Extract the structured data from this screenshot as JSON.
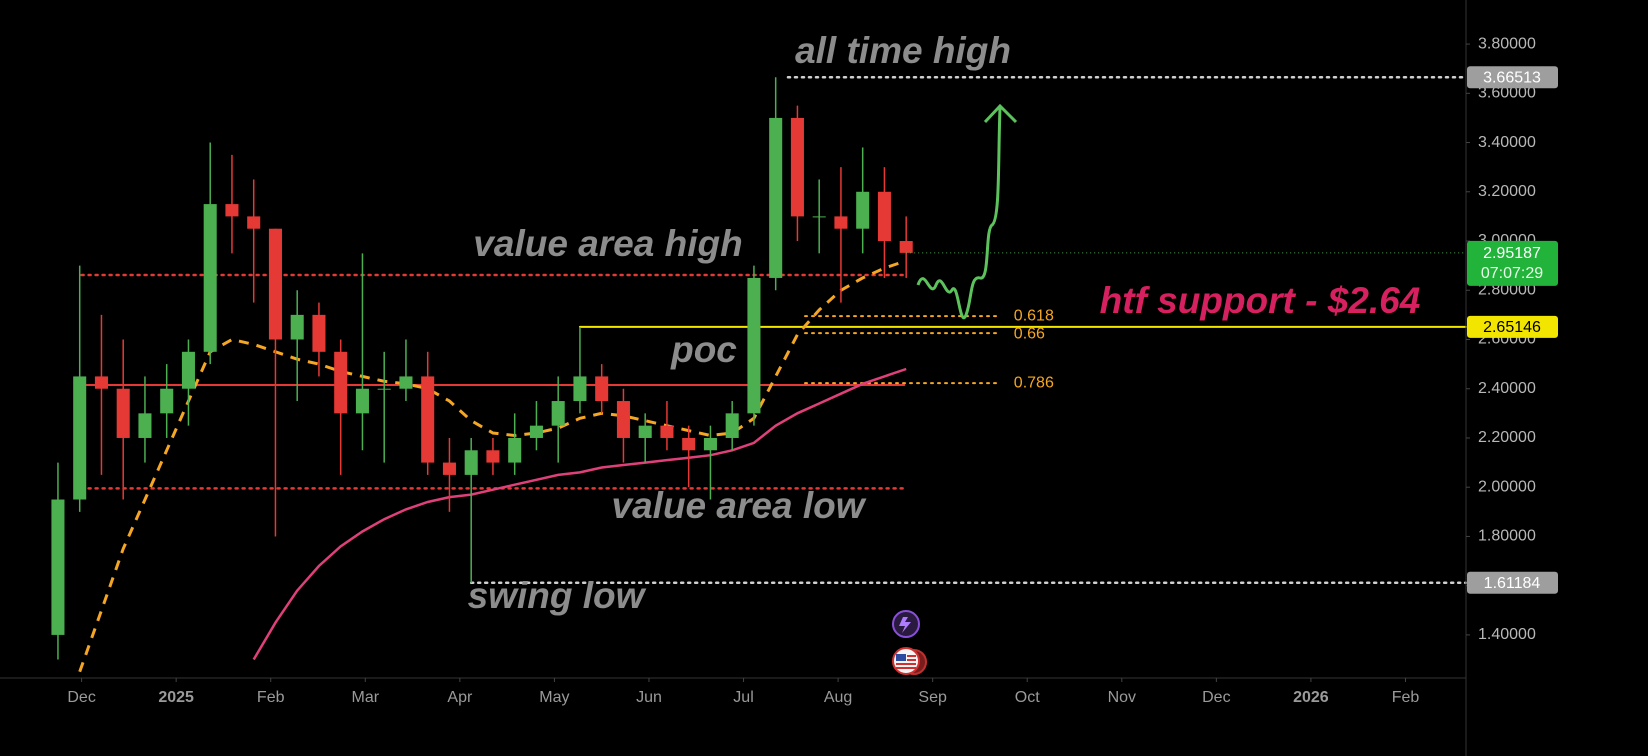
{
  "chart_data": {
    "type": "candlestick",
    "x": [
      -0.25,
      -0.02,
      0.21,
      0.44,
      0.67,
      0.9,
      1.13,
      1.36,
      1.59,
      1.82,
      2.05,
      2.28,
      2.51,
      2.74,
      2.97,
      3.2,
      3.43,
      3.66,
      3.89,
      4.12,
      4.35,
      4.58,
      4.81,
      5.04,
      5.27,
      5.5,
      5.73,
      5.96,
      6.19,
      6.42,
      6.65,
      6.88,
      7.11,
      7.34,
      7.57,
      7.8,
      8.03,
      8.26,
      8.49,
      8.72
    ],
    "open": [
      1.4,
      1.95,
      2.45,
      2.4,
      2.2,
      2.3,
      2.4,
      2.55,
      3.15,
      3.1,
      3.05,
      2.6,
      2.7,
      2.55,
      2.3,
      2.4,
      2.4,
      2.45,
      2.1,
      2.05,
      2.15,
      2.1,
      2.2,
      2.25,
      2.35,
      2.45,
      2.35,
      2.2,
      2.25,
      2.2,
      2.15,
      2.2,
      2.3,
      2.85,
      3.5,
      3.1,
      3.1,
      3.05,
      3.2,
      3.0
    ],
    "high": [
      2.1,
      2.9,
      2.7,
      2.6,
      2.45,
      2.5,
      2.6,
      3.4,
      3.35,
      3.25,
      3.05,
      2.8,
      2.75,
      2.6,
      2.95,
      2.55,
      2.6,
      2.55,
      2.2,
      2.2,
      2.2,
      2.3,
      2.35,
      2.45,
      2.65,
      2.5,
      2.4,
      2.3,
      2.35,
      2.25,
      2.25,
      2.35,
      2.9,
      3.66513,
      3.55,
      3.25,
      3.3,
      3.38,
      3.3,
      3.1
    ],
    "low": [
      1.3,
      1.9,
      2.05,
      1.95,
      2.1,
      2.2,
      2.25,
      2.5,
      2.95,
      2.75,
      1.8,
      2.35,
      2.45,
      2.05,
      2.15,
      2.1,
      2.35,
      2.05,
      1.9,
      1.61184,
      2.05,
      2.05,
      2.15,
      2.1,
      2.3,
      2.3,
      2.1,
      2.1,
      2.15,
      2.0,
      1.95,
      2.15,
      2.25,
      2.8,
      3.0,
      2.95,
      2.75,
      2.95,
      2.85,
      2.85
    ],
    "close": [
      1.95,
      2.45,
      2.4,
      2.2,
      2.3,
      2.4,
      2.55,
      3.15,
      3.1,
      3.05,
      2.6,
      2.7,
      2.55,
      2.3,
      2.4,
      2.4,
      2.45,
      2.1,
      2.05,
      2.15,
      2.1,
      2.2,
      2.25,
      2.35,
      2.45,
      2.35,
      2.2,
      2.25,
      2.2,
      2.15,
      2.2,
      2.3,
      2.85,
      3.5,
      3.1,
      3.1,
      3.05,
      3.2,
      3.0,
      2.95187
    ],
    "up_color": "#4caf50",
    "down_color": "#e53935",
    "countdown": "07:07:29",
    "moving_averages": [
      {
        "color": "#e0407a",
        "dash": false,
        "values": [
          null,
          null,
          null,
          null,
          null,
          null,
          null,
          null,
          null,
          1.3,
          1.45,
          1.58,
          1.68,
          1.76,
          1.82,
          1.87,
          1.91,
          1.94,
          1.96,
          1.97,
          1.99,
          2.01,
          2.03,
          2.05,
          2.06,
          2.08,
          2.09,
          2.1,
          2.11,
          2.12,
          2.13,
          2.15,
          2.18,
          2.25,
          2.3,
          2.34,
          2.38,
          2.42,
          2.45,
          2.48
        ]
      },
      {
        "color": "#f5a623",
        "dash": true,
        "values": [
          null,
          1.25,
          1.5,
          1.75,
          1.95,
          2.15,
          2.35,
          2.55,
          2.6,
          2.58,
          2.55,
          2.52,
          2.5,
          2.47,
          2.45,
          2.43,
          2.42,
          2.4,
          2.35,
          2.27,
          2.22,
          2.21,
          2.22,
          2.24,
          2.28,
          2.3,
          2.29,
          2.27,
          2.25,
          2.23,
          2.21,
          2.22,
          2.28,
          2.45,
          2.62,
          2.72,
          2.8,
          2.85,
          2.89,
          2.92
        ]
      }
    ],
    "levels": [
      {
        "value": 3.66513,
        "label": "3.66513",
        "color": "#d0d0d0",
        "tag_color": "#9e9e9e",
        "style": "dotted",
        "from": 7.47
      },
      {
        "value": 2.862,
        "color": "#e53935",
        "style": "dotted",
        "from": 0,
        "to": 8.7
      },
      {
        "value": 2.415,
        "color": "#e53935",
        "style": "solid",
        "from": 0,
        "to": 8.7
      },
      {
        "value": 1.995,
        "color": "#e53935",
        "style": "dotted",
        "from": 0,
        "to": 8.7
      },
      {
        "value": 2.65146,
        "label": "2.65146",
        "color": "#f2e600",
        "tag_color": "#f2e600",
        "style": "solid",
        "from": 5.27
      },
      {
        "value": 1.61184,
        "label": "1.61184",
        "color": "#d0d0d0",
        "tag_color": "#9e9e9e",
        "style": "dotted",
        "from": 4.12
      }
    ],
    "fib": {
      "color": "#f5a623",
      "from": 7.65,
      "to": 9.71,
      "levels": [
        {
          "ratio": 0.618,
          "price": 2.695
        },
        {
          "ratio": 0.66,
          "price": 2.626
        },
        {
          "ratio": 0.786,
          "price": 2.423
        }
      ]
    },
    "annotations": [
      {
        "text": "all time high",
        "color": "#8c8c8c"
      },
      {
        "text": "value area high",
        "color": "#8c8c8c"
      },
      {
        "text": "poc",
        "color": "#8c8c8c"
      },
      {
        "text": "value area low",
        "color": "#8c8c8c"
      },
      {
        "text": "swing low",
        "color": "#8c8c8c"
      },
      {
        "text": "htf support - $2.64",
        "color": "#d6205f"
      }
    ],
    "xlim": [
      -0.81,
      14.64
    ],
    "xticks": [
      {
        "value": 0,
        "label": "Dec"
      },
      {
        "value": 1,
        "label": "2025"
      },
      {
        "value": 2,
        "label": "Feb"
      },
      {
        "value": 3,
        "label": "Mar"
      },
      {
        "value": 4,
        "label": "Apr"
      },
      {
        "value": 5,
        "label": "May"
      },
      {
        "value": 6,
        "label": "Jun"
      },
      {
        "value": 7,
        "label": "Jul"
      },
      {
        "value": 8,
        "label": "Aug"
      },
      {
        "value": 9,
        "label": "Sep"
      },
      {
        "value": 10,
        "label": "Oct"
      },
      {
        "value": 11,
        "label": "Nov"
      },
      {
        "value": 12,
        "label": "Dec"
      },
      {
        "value": 13,
        "label": "2026"
      },
      {
        "value": 14,
        "label": "Feb"
      }
    ],
    "ylim": [
      1.225,
      3.979
    ],
    "yticks": [
      {
        "value": 1.4,
        "label": "1.40000"
      },
      {
        "value": 1.6,
        "label": "1.60000"
      },
      {
        "value": 1.8,
        "label": "1.80000"
      },
      {
        "value": 2.0,
        "label": "2.00000"
      },
      {
        "value": 2.2,
        "label": "2.20000"
      },
      {
        "value": 2.4,
        "label": "2.40000"
      },
      {
        "value": 2.6,
        "label": "2.60000"
      },
      {
        "value": 2.8,
        "label": "2.80000"
      },
      {
        "value": 3.0,
        "label": "3.00000"
      },
      {
        "value": 3.2,
        "label": "3.20000"
      },
      {
        "value": 3.4,
        "label": "3.40000"
      },
      {
        "value": 3.6,
        "label": "3.60000"
      },
      {
        "value": 3.8,
        "label": "3.80000"
      }
    ],
    "grid": false
  }
}
